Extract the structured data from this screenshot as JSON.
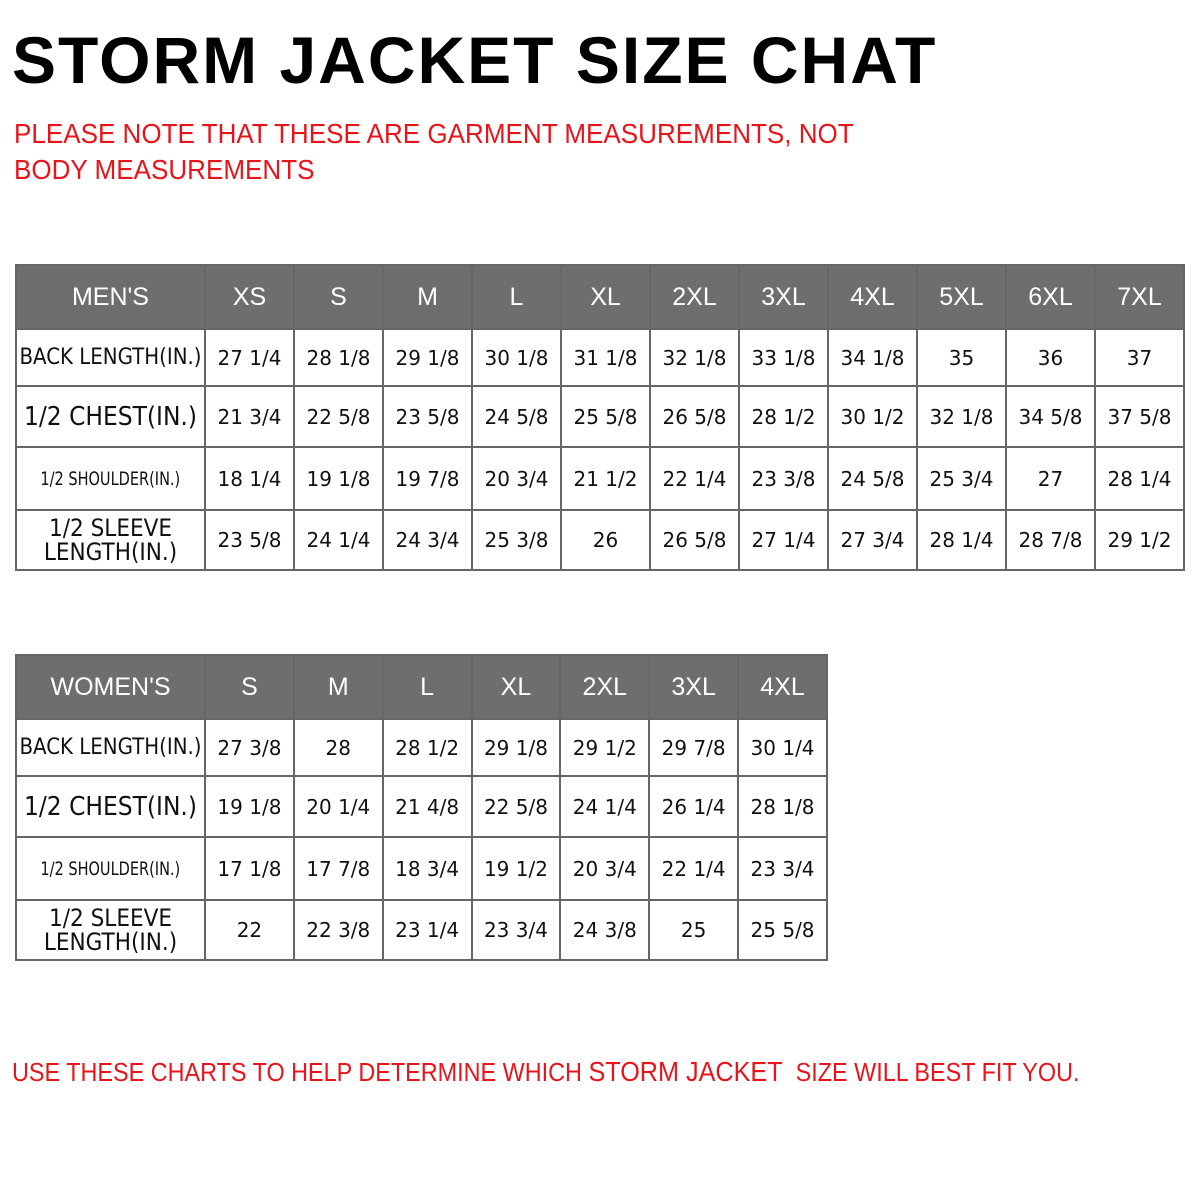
{
  "title": "STORM JACKET SIZE CHAT",
  "note": "PLEASE NOTE THAT THESE ARE GARMENT MEASUREMENTS, NOT BODY MEASUREMENTS",
  "mens": {
    "header": "MEN'S",
    "sizes": [
      "XS",
      "S",
      "M",
      "L",
      "XL",
      "2XL",
      "3XL",
      "4XL",
      "5XL",
      "6XL",
      "7XL"
    ],
    "rows": [
      {
        "label": "BACK LENGTH(IN.)",
        "values": [
          "27 1/4",
          "28 1/8",
          "29 1/8",
          "30 1/8",
          "31 1/8",
          "32 1/8",
          "33 1/8",
          "34 1/8",
          "35",
          "36",
          "37"
        ]
      },
      {
        "label": "1/2 CHEST(IN.)",
        "values": [
          "21 3/4",
          "22 5/8",
          "23 5/8",
          "24 5/8",
          "25 5/8",
          "26 5/8",
          "28 1/2",
          "30 1/2",
          "32 1/8",
          "34 5/8",
          "37 5/8"
        ]
      },
      {
        "label": "1/2 SHOULDER(IN.)",
        "values": [
          "18 1/4",
          "19 1/8",
          "19 7/8",
          "20 3/4",
          "21 1/2",
          "22 1/4",
          "23 3/8",
          "24 5/8",
          "25 3/4",
          "27",
          "28 1/4"
        ]
      },
      {
        "label": "1/2 SLEEVE LENGTH(IN.)",
        "values": [
          "23 5/8",
          "24 1/4",
          "24 3/4",
          "25 3/8",
          "26",
          "26 5/8",
          "27 1/4",
          "27 3/4",
          "28 1/4",
          "28 7/8",
          "29 1/2"
        ]
      }
    ]
  },
  "womens": {
    "header": "WOMEN'S",
    "sizes": [
      "S",
      "M",
      "L",
      "XL",
      "2XL",
      "3XL",
      "4XL"
    ],
    "rows": [
      {
        "label": "BACK LENGTH(IN.)",
        "values": [
          "27 3/8",
          "28",
          "28 1/2",
          "29 1/8",
          "29 1/2",
          "29 7/8",
          "30 1/4"
        ]
      },
      {
        "label": "1/2 CHEST(IN.)",
        "values": [
          "19 1/8",
          "20 1/4",
          "21 4/8",
          "22 5/8",
          "24 1/4",
          "26 1/4",
          "28 1/8"
        ]
      },
      {
        "label": "1/2 SHOULDER(IN.)",
        "values": [
          "17 1/8",
          "17 7/8",
          "18 3/4",
          "19 1/2",
          "20 3/4",
          "22 1/4",
          "23 3/4"
        ]
      },
      {
        "label": "1/2 SLEEVE LENGTH(IN.)",
        "values": [
          "22",
          "22 3/8",
          "23 1/4",
          "23 3/4",
          "24 3/8",
          "25",
          "25 5/8"
        ]
      }
    ]
  },
  "footer": {
    "before": "USE THESE CHARTS TO HELP DETERMINE WHICH ",
    "brand": "STORM JACKET",
    "after": "  SIZE WILL BEST FIT YOU."
  },
  "colors": {
    "header_bg": "#6e6e6e",
    "accent_red": "#e8141b"
  }
}
